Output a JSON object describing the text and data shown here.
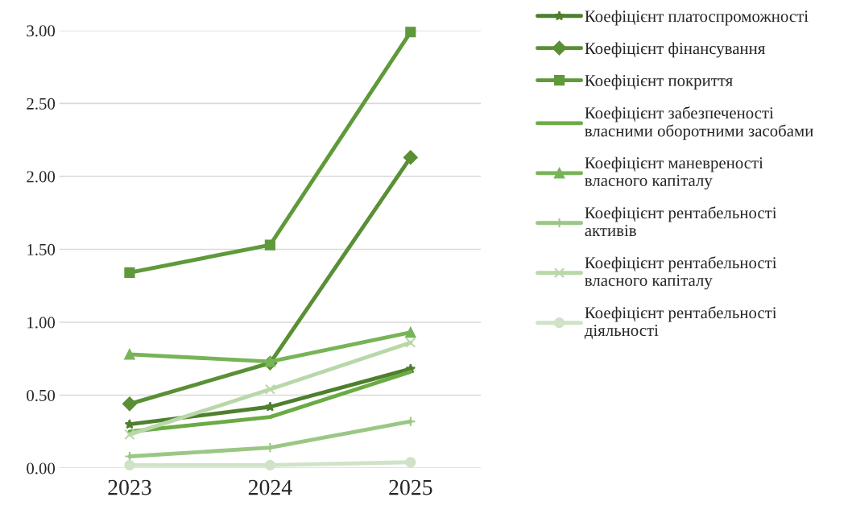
{
  "chart_data": {
    "type": "line",
    "categories": [
      "2023",
      "2024",
      "2025"
    ],
    "series": [
      {
        "name": "Коефіцієнт платоспроможності",
        "color": "#4e7f2e",
        "marker": "star",
        "values": [
          0.3,
          0.42,
          0.68
        ]
      },
      {
        "name": "Коефіцієнт фінансування",
        "color": "#5a8f36",
        "marker": "diamond",
        "values": [
          0.44,
          0.72,
          2.13
        ]
      },
      {
        "name": "Коефіцієнт покриття",
        "color": "#5f9a3a",
        "marker": "square",
        "values": [
          1.34,
          1.53,
          2.99
        ]
      },
      {
        "name": "Коефіцієнт забезпеченості власними оборотними засобами",
        "color": "#6aab43",
        "marker": "none",
        "values": [
          0.25,
          0.35,
          0.66
        ]
      },
      {
        "name": "Коефіцієнт маневреності власного капіталу",
        "color": "#77b458",
        "marker": "triangle",
        "values": [
          0.78,
          0.73,
          0.93
        ]
      },
      {
        "name": "Коефіцієнт рентабельності активів",
        "color": "#9bc786",
        "marker": "plus",
        "values": [
          0.08,
          0.14,
          0.32
        ]
      },
      {
        "name": "Коефіцієнт рентабельності власного капіталу",
        "color": "#b8d8a8",
        "marker": "cross",
        "values": [
          0.23,
          0.54,
          0.86
        ]
      },
      {
        "name": "Коефіцієнт рентабельності діяльності",
        "color": "#cfe3c6",
        "marker": "circle",
        "values": [
          0.02,
          0.02,
          0.04
        ]
      }
    ],
    "ylim": [
      0,
      3
    ],
    "yticks": [
      {
        "value": 0,
        "label": "0.00"
      },
      {
        "value": 0.5,
        "label": "0.50"
      },
      {
        "value": 1,
        "label": "1.00"
      },
      {
        "value": 1.5,
        "label": "1.50"
      },
      {
        "value": 2,
        "label": "2.00"
      },
      {
        "value": 2.5,
        "label": "2.50"
      },
      {
        "value": 3,
        "label": "3.00"
      }
    ],
    "grid": "y",
    "legend": "right",
    "line_style": "solid"
  }
}
